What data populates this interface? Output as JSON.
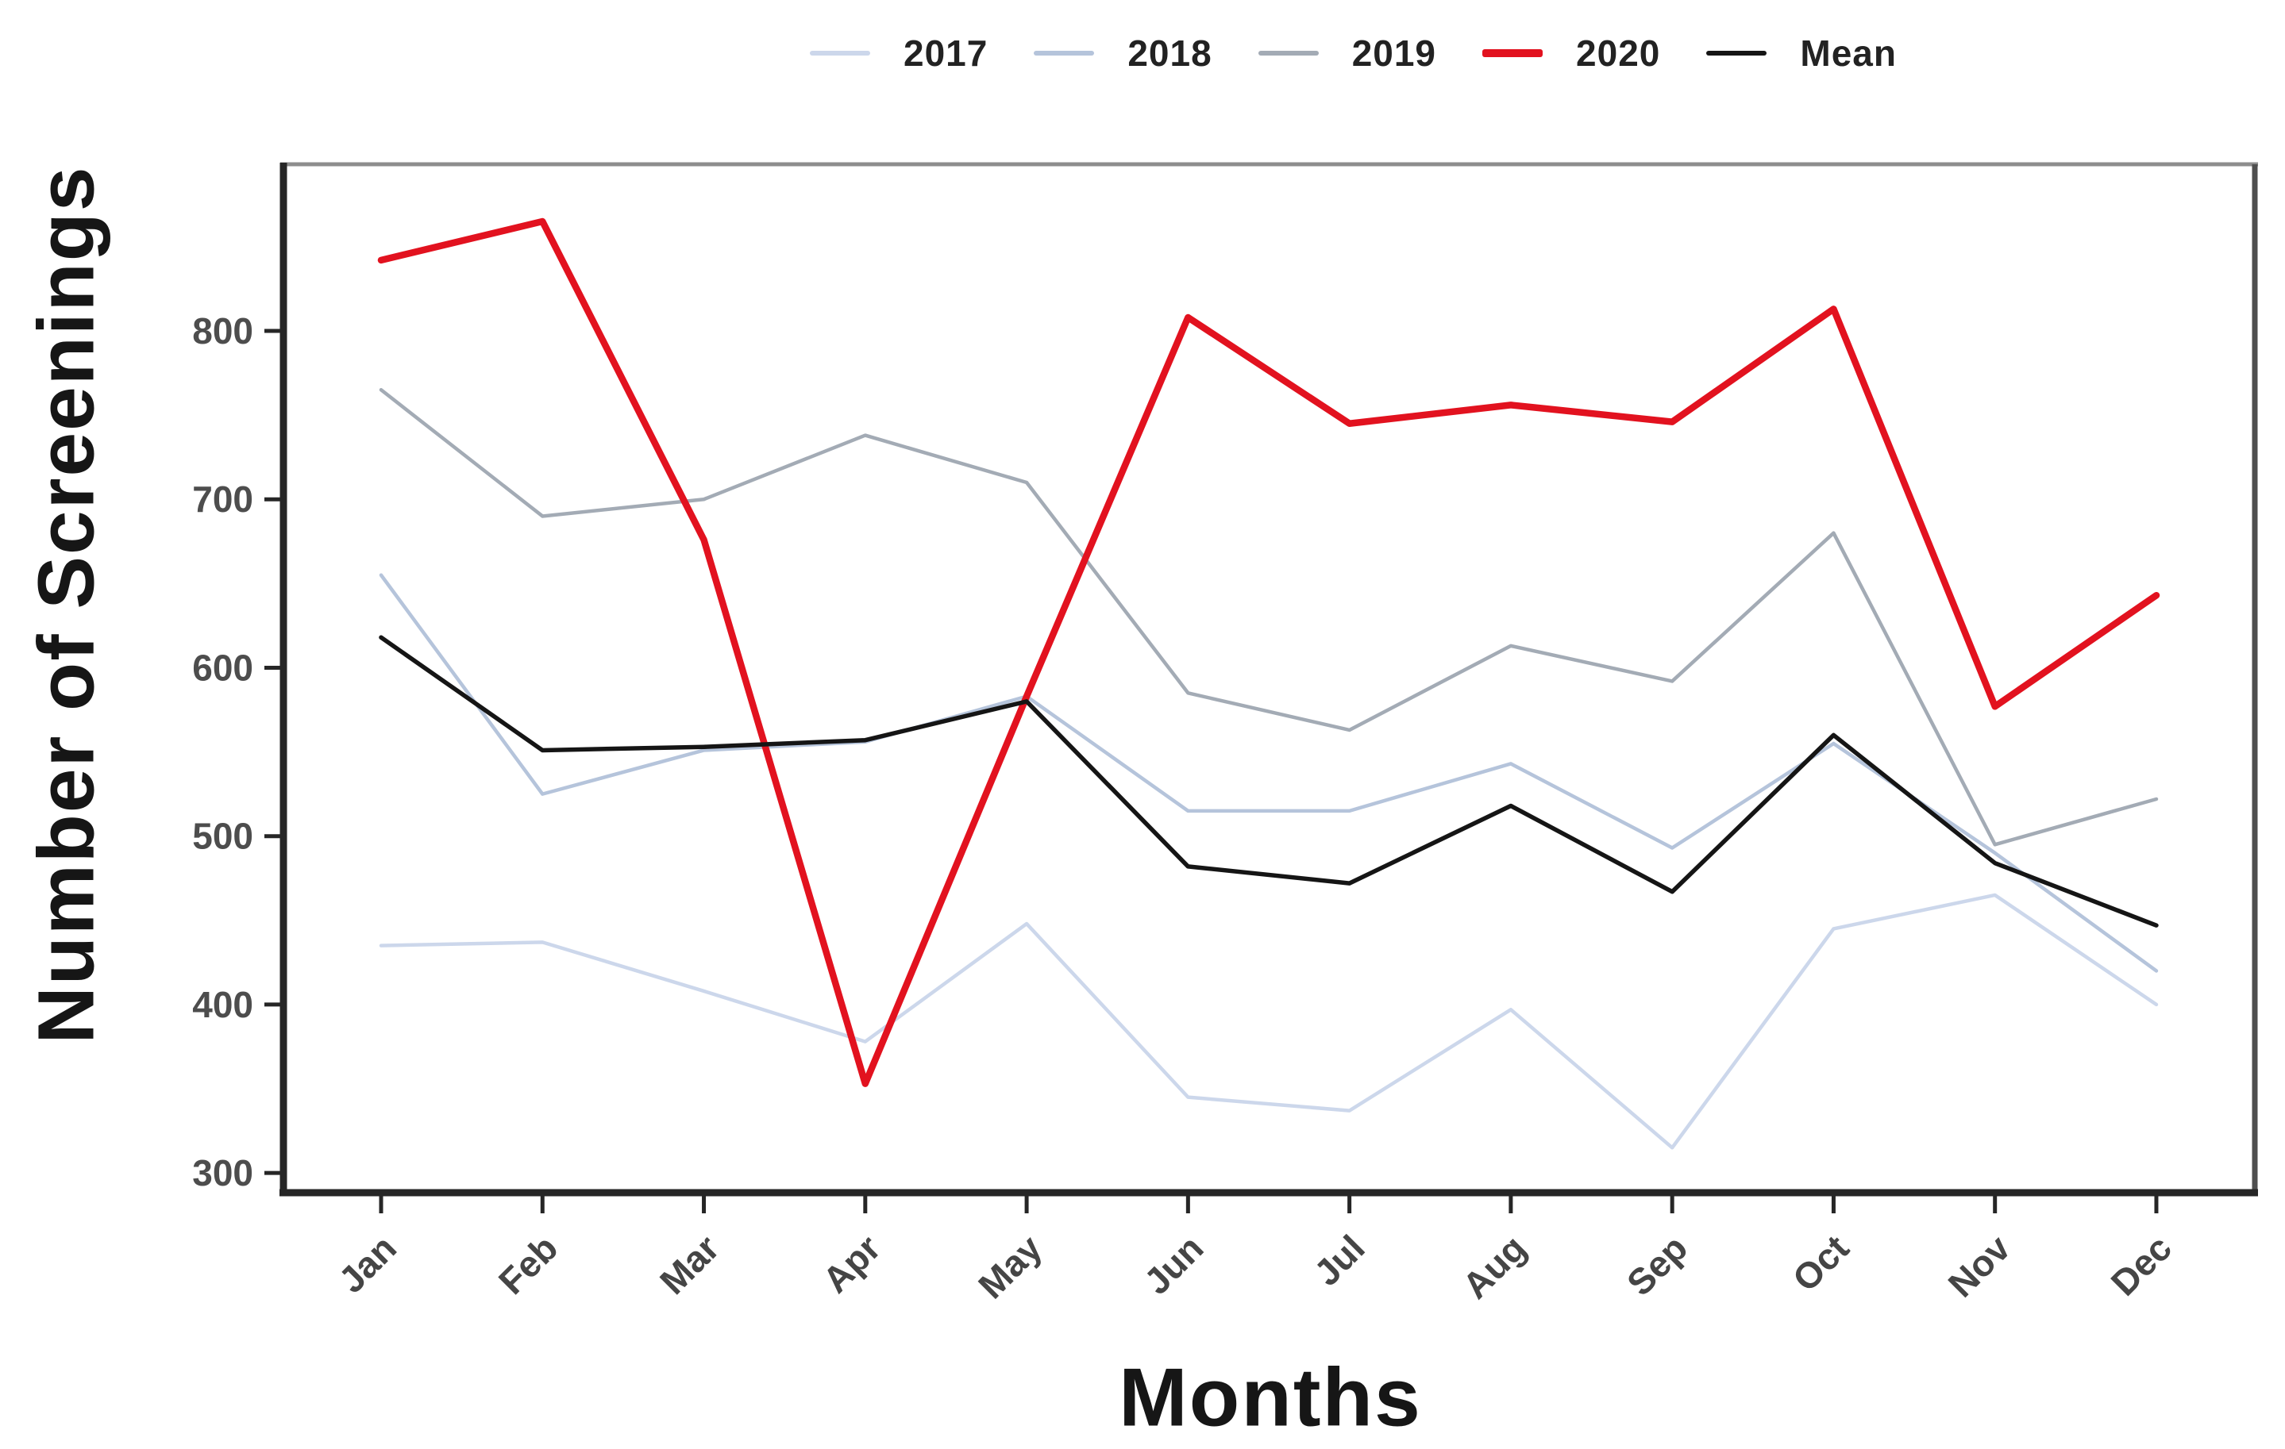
{
  "chart_data": {
    "type": "line",
    "title": "",
    "xlabel": "Months",
    "ylabel": "Number of Screenings",
    "categories": [
      "Jan",
      "Feb",
      "Mar",
      "Apr",
      "May",
      "Jun",
      "Jul",
      "Aug",
      "Sep",
      "Oct",
      "Nov",
      "Dec"
    ],
    "y_ticks": [
      300,
      400,
      500,
      600,
      700,
      800
    ],
    "ylim": [
      256,
      895
    ],
    "grid": "off",
    "legend_position": "top-center",
    "series": [
      {
        "name": "2017",
        "color": "#ccd7eb",
        "values": [
          435,
          437,
          408,
          378,
          448,
          345,
          337,
          397,
          315,
          445,
          465,
          400
        ]
      },
      {
        "name": "2018",
        "color": "#b5c4db",
        "values": [
          655,
          525,
          551,
          556,
          583,
          515,
          515,
          543,
          493,
          555,
          490,
          420
        ]
      },
      {
        "name": "2019",
        "color": "#a3abb5",
        "values": [
          765,
          690,
          700,
          738,
          710,
          585,
          563,
          613,
          592,
          680,
          495,
          522
        ]
      },
      {
        "name": "2020",
        "color": "#e2121f",
        "values": [
          842,
          865,
          676,
          353,
          583,
          808,
          745,
          756,
          746,
          813,
          577,
          643
        ]
      },
      {
        "name": "Mean",
        "color": "#151515",
        "values": [
          618,
          551,
          553,
          557,
          580,
          482,
          472,
          518,
          467,
          560,
          484,
          447
        ]
      }
    ]
  }
}
